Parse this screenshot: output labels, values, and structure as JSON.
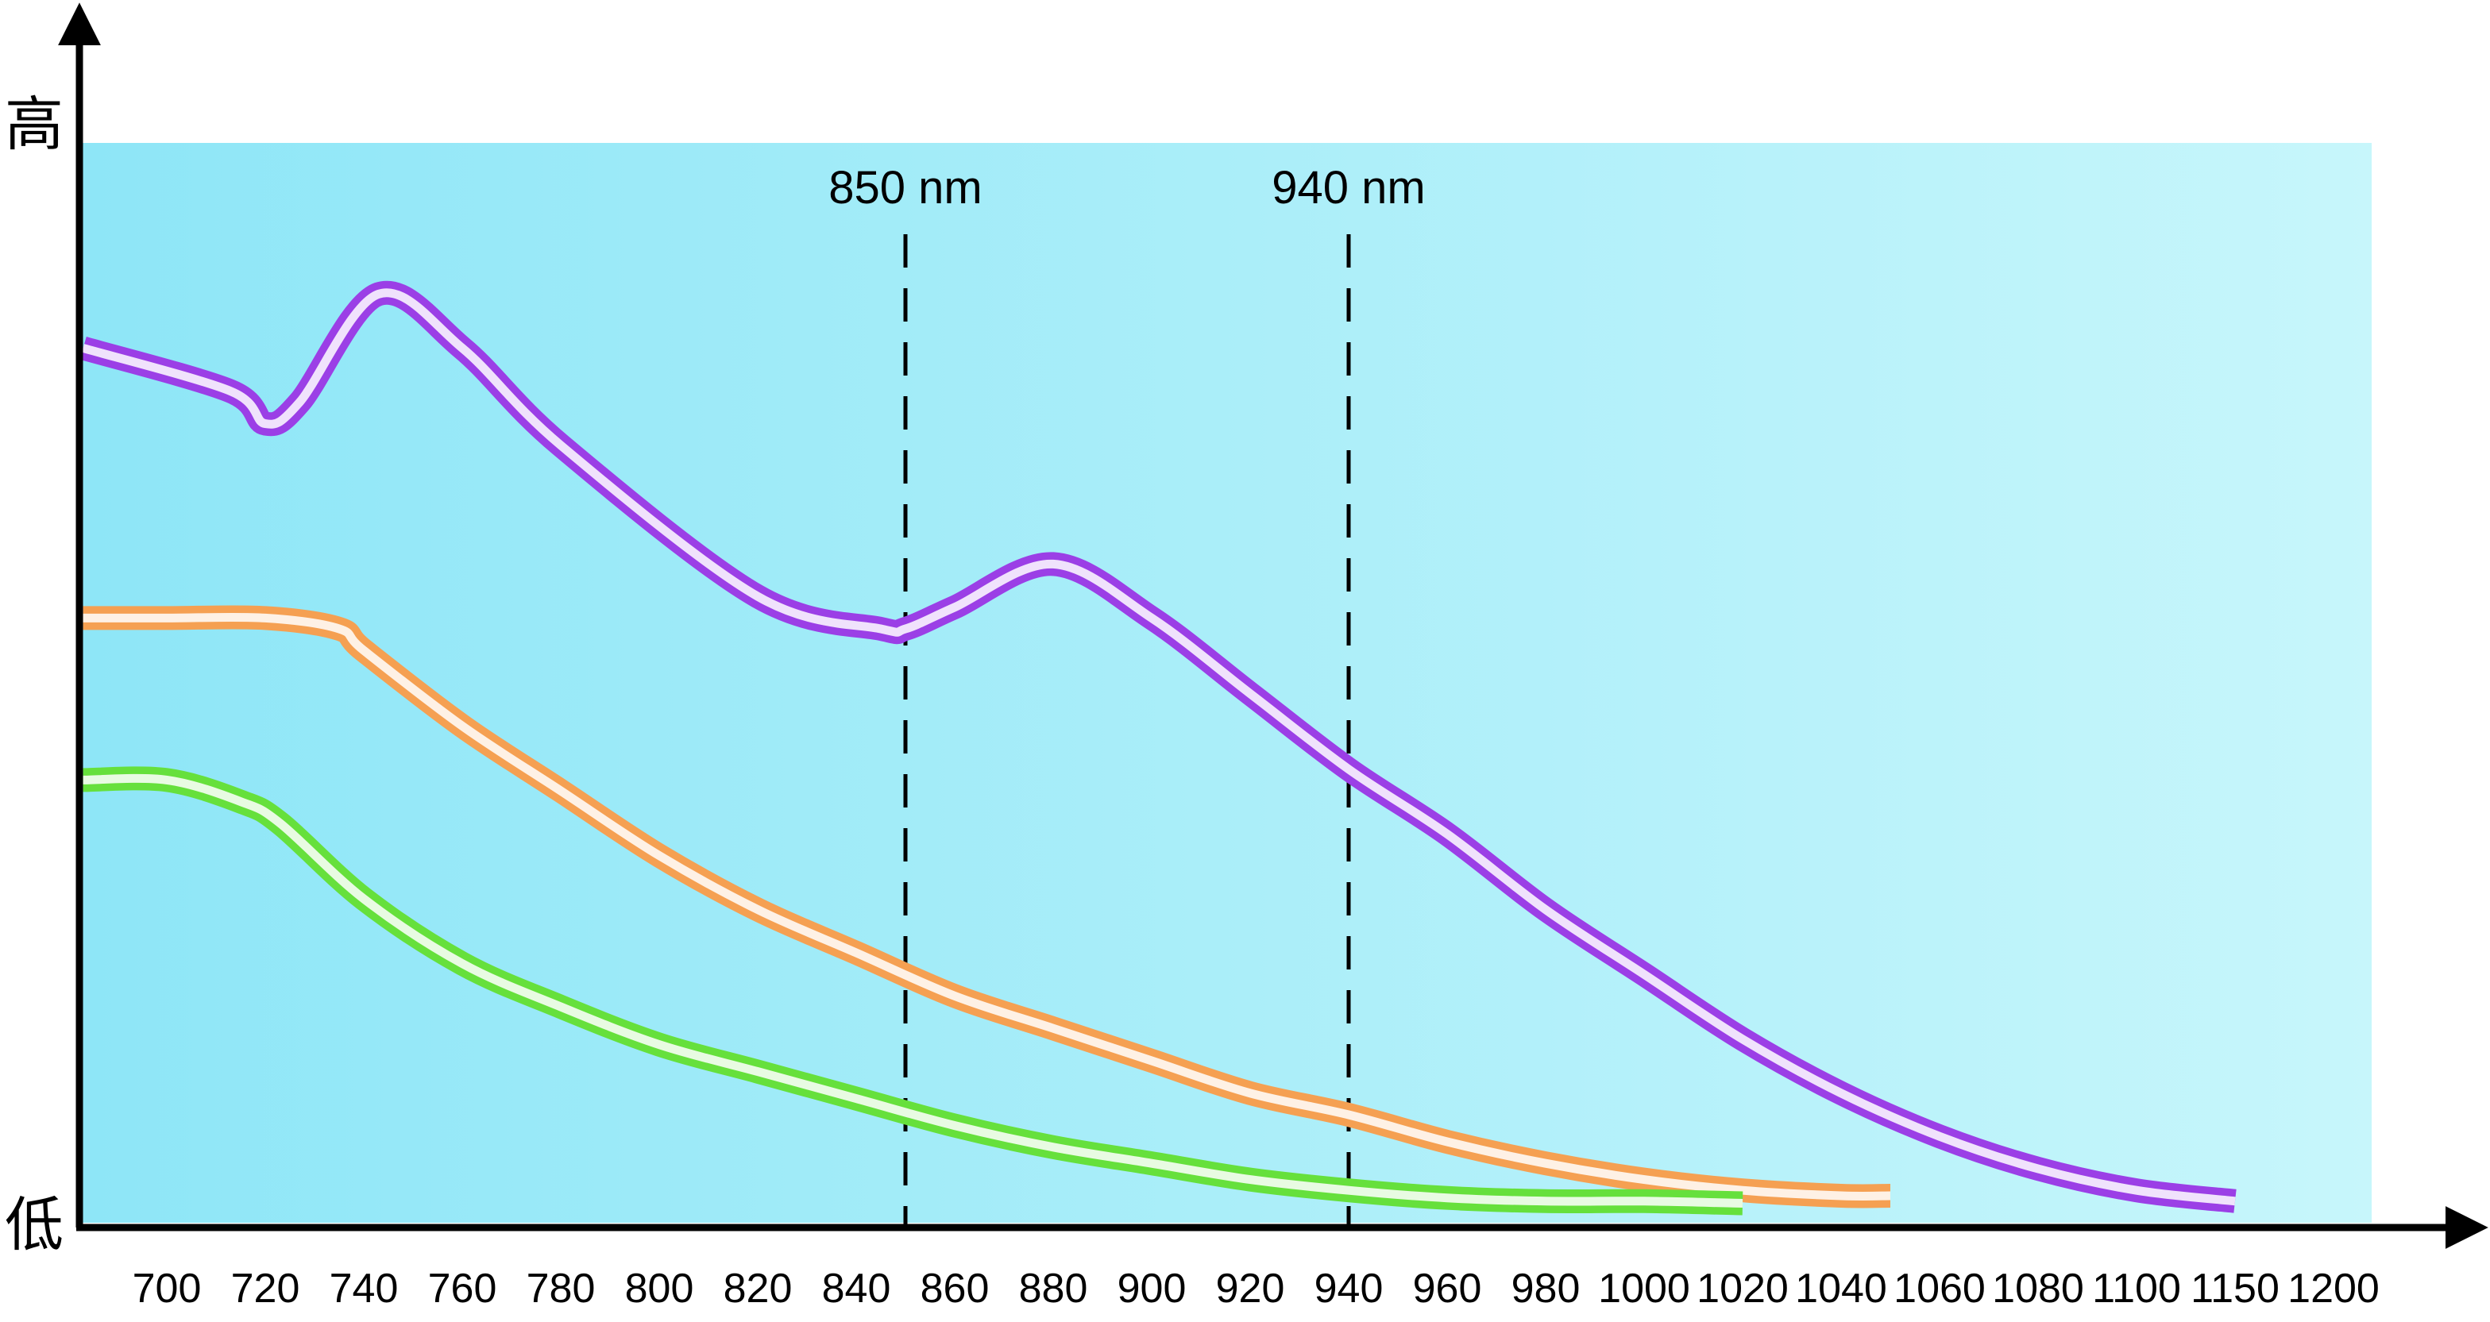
{
  "chart_data": {
    "type": "line",
    "title": "",
    "xlabel": "",
    "ylabel": "",
    "y_axis_labels": {
      "top": "高",
      "bottom": "低"
    },
    "x_ticks": [
      "700",
      "720",
      "740",
      "760",
      "780",
      "800",
      "820",
      "840",
      "860",
      "880",
      "900",
      "920",
      "940",
      "960",
      "980",
      "1000",
      "1020",
      "1040",
      "1060",
      "1080",
      "1100",
      "1150",
      "1200"
    ],
    "reference_lines": [
      {
        "label": "850 nm",
        "x": 850
      },
      {
        "label": "940 nm",
        "x": 940
      }
    ],
    "y_range": [
      0,
      100
    ],
    "series": [
      {
        "color": "#9b3fe6",
        "points": [
          [
            683,
            81
          ],
          [
            713,
            77
          ],
          [
            720,
            74
          ],
          [
            727,
            76
          ],
          [
            743,
            86
          ],
          [
            760,
            81
          ],
          [
            780,
            72
          ],
          [
            820,
            58
          ],
          [
            845,
            55
          ],
          [
            850,
            55
          ],
          [
            860,
            57
          ],
          [
            880,
            61
          ],
          [
            900,
            56
          ],
          [
            920,
            49
          ],
          [
            940,
            42
          ],
          [
            960,
            36
          ],
          [
            980,
            29
          ],
          [
            1000,
            23
          ],
          [
            1020,
            17
          ],
          [
            1040,
            12
          ],
          [
            1060,
            8
          ],
          [
            1080,
            5
          ],
          [
            1100,
            3
          ],
          [
            1150,
            2
          ]
        ]
      },
      {
        "color": "#f5a052",
        "points": [
          [
            683,
            56
          ],
          [
            700,
            56
          ],
          [
            720,
            56
          ],
          [
            735,
            55
          ],
          [
            740,
            53
          ],
          [
            760,
            46
          ],
          [
            780,
            40
          ],
          [
            800,
            34
          ],
          [
            820,
            29
          ],
          [
            840,
            25
          ],
          [
            860,
            21
          ],
          [
            880,
            18
          ],
          [
            900,
            15
          ],
          [
            920,
            12
          ],
          [
            940,
            10
          ],
          [
            960,
            7.5
          ],
          [
            980,
            5.5
          ],
          [
            1000,
            4
          ],
          [
            1020,
            3
          ],
          [
            1040,
            2.5
          ],
          [
            1050,
            2.5
          ]
        ]
      },
      {
        "color": "#66e03c",
        "points": [
          [
            683,
            41
          ],
          [
            700,
            41
          ],
          [
            715,
            39
          ],
          [
            723,
            37
          ],
          [
            740,
            30
          ],
          [
            760,
            24
          ],
          [
            780,
            20
          ],
          [
            800,
            16.5
          ],
          [
            820,
            14
          ],
          [
            840,
            11.5
          ],
          [
            860,
            9
          ],
          [
            880,
            7
          ],
          [
            900,
            5.5
          ],
          [
            920,
            4
          ],
          [
            940,
            3
          ],
          [
            960,
            2.3
          ],
          [
            980,
            2
          ],
          [
            1000,
            2
          ],
          [
            1020,
            1.8
          ]
        ]
      }
    ],
    "background_gradient": [
      "#8ee6f7",
      "#c7f6fb"
    ],
    "axis_color": "#000000",
    "grid": false,
    "legend": "none"
  }
}
